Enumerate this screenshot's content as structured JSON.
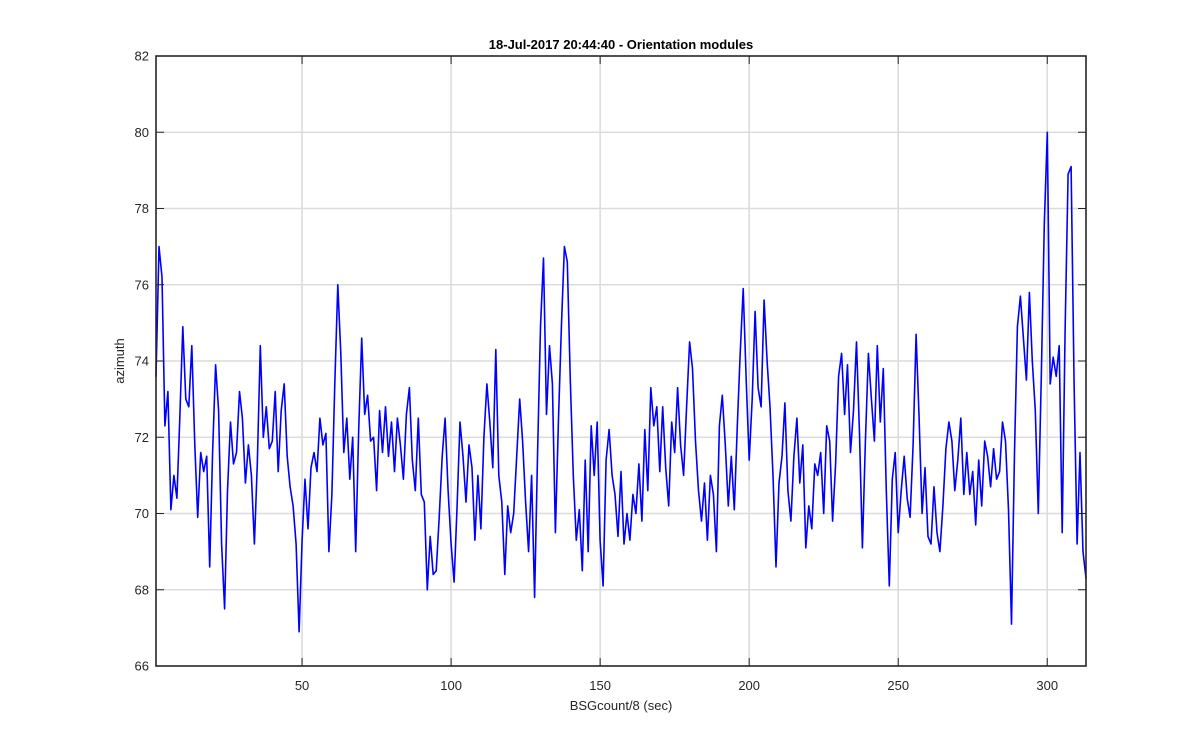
{
  "chart_data": {
    "type": "line",
    "title": "18-Jul-2017 20:44:40 - Orientation modules",
    "xlabel": "BSGcount/8 (sec)",
    "ylabel": "azimuth",
    "xlim": [
      1,
      313
    ],
    "ylim": [
      66,
      82
    ],
    "xticks": [
      50,
      100,
      150,
      200,
      250,
      300
    ],
    "yticks": [
      66,
      68,
      70,
      72,
      74,
      76,
      78,
      80,
      82
    ],
    "grid": true,
    "box": true,
    "series": [
      {
        "color": "#0000ff",
        "points": [
          [
            1,
            73.6
          ],
          [
            2,
            77.0
          ],
          [
            3,
            76.2
          ],
          [
            4,
            72.3
          ],
          [
            5,
            73.2
          ],
          [
            6,
            70.1
          ],
          [
            7,
            71.0
          ],
          [
            8,
            70.4
          ],
          [
            9,
            72.5
          ],
          [
            10,
            74.9
          ],
          [
            11,
            73.0
          ],
          [
            12,
            72.8
          ],
          [
            13,
            74.4
          ],
          [
            14,
            71.8
          ],
          [
            15,
            69.9
          ],
          [
            16,
            71.6
          ],
          [
            17,
            71.1
          ],
          [
            18,
            71.5
          ],
          [
            19,
            68.6
          ],
          [
            20,
            71.6
          ],
          [
            21,
            73.9
          ],
          [
            22,
            72.7
          ],
          [
            23,
            69.2
          ],
          [
            24,
            67.5
          ],
          [
            25,
            70.6
          ],
          [
            26,
            72.4
          ],
          [
            27,
            71.3
          ],
          [
            28,
            71.6
          ],
          [
            29,
            73.2
          ],
          [
            30,
            72.5
          ],
          [
            31,
            70.8
          ],
          [
            32,
            71.8
          ],
          [
            33,
            71.0
          ],
          [
            34,
            69.2
          ],
          [
            35,
            71.3
          ],
          [
            36,
            74.4
          ],
          [
            37,
            72.0
          ],
          [
            38,
            72.8
          ],
          [
            39,
            71.7
          ],
          [
            40,
            71.9
          ],
          [
            41,
            73.2
          ],
          [
            42,
            71.1
          ],
          [
            43,
            72.7
          ],
          [
            44,
            73.4
          ],
          [
            45,
            71.5
          ],
          [
            46,
            70.7
          ],
          [
            47,
            70.2
          ],
          [
            48,
            69.2
          ],
          [
            49,
            66.9
          ],
          [
            50,
            69.3
          ],
          [
            51,
            70.9
          ],
          [
            52,
            69.6
          ],
          [
            53,
            71.2
          ],
          [
            54,
            71.6
          ],
          [
            55,
            71.1
          ],
          [
            56,
            72.5
          ],
          [
            57,
            71.8
          ],
          [
            58,
            72.1
          ],
          [
            59,
            69.0
          ],
          [
            60,
            70.5
          ],
          [
            61,
            73.4
          ],
          [
            62,
            76.0
          ],
          [
            63,
            74.2
          ],
          [
            64,
            71.6
          ],
          [
            65,
            72.5
          ],
          [
            66,
            70.9
          ],
          [
            67,
            72.0
          ],
          [
            68,
            69.0
          ],
          [
            69,
            72.2
          ],
          [
            70,
            74.6
          ],
          [
            71,
            72.6
          ],
          [
            72,
            73.1
          ],
          [
            73,
            71.9
          ],
          [
            74,
            72.0
          ],
          [
            75,
            70.6
          ],
          [
            76,
            72.7
          ],
          [
            77,
            71.6
          ],
          [
            78,
            72.8
          ],
          [
            79,
            71.5
          ],
          [
            80,
            72.4
          ],
          [
            81,
            71.1
          ],
          [
            82,
            72.5
          ],
          [
            83,
            71.8
          ],
          [
            84,
            70.9
          ],
          [
            85,
            72.6
          ],
          [
            86,
            73.3
          ],
          [
            87,
            71.4
          ],
          [
            88,
            70.6
          ],
          [
            89,
            72.5
          ],
          [
            90,
            70.5
          ],
          [
            91,
            70.3
          ],
          [
            92,
            68.0
          ],
          [
            93,
            69.4
          ],
          [
            94,
            68.4
          ],
          [
            95,
            68.5
          ],
          [
            96,
            69.9
          ],
          [
            97,
            71.5
          ],
          [
            98,
            72.5
          ],
          [
            99,
            70.6
          ],
          [
            100,
            69.2
          ],
          [
            101,
            68.2
          ],
          [
            102,
            70.2
          ],
          [
            103,
            72.4
          ],
          [
            104,
            71.5
          ],
          [
            105,
            70.3
          ],
          [
            106,
            71.8
          ],
          [
            107,
            71.2
          ],
          [
            108,
            69.3
          ],
          [
            109,
            71.0
          ],
          [
            110,
            69.6
          ],
          [
            111,
            72.0
          ],
          [
            112,
            73.4
          ],
          [
            113,
            72.4
          ],
          [
            114,
            71.2
          ],
          [
            115,
            74.3
          ],
          [
            116,
            71.0
          ],
          [
            117,
            70.3
          ],
          [
            118,
            68.4
          ],
          [
            119,
            70.2
          ],
          [
            120,
            69.5
          ],
          [
            121,
            70.0
          ],
          [
            122,
            71.5
          ],
          [
            123,
            73.0
          ],
          [
            124,
            71.9
          ],
          [
            125,
            70.3
          ],
          [
            126,
            69.0
          ],
          [
            127,
            71.0
          ],
          [
            128,
            67.8
          ],
          [
            129,
            71.5
          ],
          [
            130,
            74.9
          ],
          [
            131,
            76.7
          ],
          [
            132,
            72.6
          ],
          [
            133,
            74.4
          ],
          [
            134,
            73.4
          ],
          [
            135,
            69.5
          ],
          [
            136,
            72.4
          ],
          [
            137,
            74.9
          ],
          [
            138,
            77.0
          ],
          [
            139,
            76.6
          ],
          [
            140,
            73.5
          ],
          [
            141,
            71.0
          ],
          [
            142,
            69.3
          ],
          [
            143,
            70.1
          ],
          [
            144,
            68.5
          ],
          [
            145,
            71.4
          ],
          [
            146,
            69.0
          ],
          [
            147,
            72.3
          ],
          [
            148,
            71.0
          ],
          [
            149,
            72.4
          ],
          [
            150,
            69.3
          ],
          [
            151,
            68.1
          ],
          [
            152,
            71.4
          ],
          [
            153,
            72.2
          ],
          [
            154,
            71.0
          ],
          [
            155,
            70.5
          ],
          [
            156,
            69.4
          ],
          [
            157,
            71.1
          ],
          [
            158,
            69.2
          ],
          [
            159,
            70.0
          ],
          [
            160,
            69.3
          ],
          [
            161,
            70.5
          ],
          [
            162,
            70.0
          ],
          [
            163,
            71.3
          ],
          [
            164,
            69.8
          ],
          [
            165,
            72.2
          ],
          [
            166,
            70.6
          ],
          [
            167,
            73.3
          ],
          [
            168,
            72.3
          ],
          [
            169,
            72.8
          ],
          [
            170,
            71.1
          ],
          [
            171,
            72.8
          ],
          [
            172,
            71.2
          ],
          [
            173,
            70.2
          ],
          [
            174,
            72.4
          ],
          [
            175,
            71.6
          ],
          [
            176,
            73.3
          ],
          [
            177,
            71.8
          ],
          [
            178,
            71.0
          ],
          [
            179,
            72.8
          ],
          [
            180,
            74.5
          ],
          [
            181,
            73.8
          ],
          [
            182,
            71.9
          ],
          [
            183,
            70.6
          ],
          [
            184,
            69.8
          ],
          [
            185,
            70.8
          ],
          [
            186,
            69.3
          ],
          [
            187,
            71.0
          ],
          [
            188,
            70.5
          ],
          [
            189,
            69.0
          ],
          [
            190,
            72.3
          ],
          [
            191,
            73.1
          ],
          [
            192,
            71.8
          ],
          [
            193,
            70.2
          ],
          [
            194,
            71.5
          ],
          [
            195,
            70.1
          ],
          [
            196,
            72.3
          ],
          [
            197,
            74.2
          ],
          [
            198,
            75.9
          ],
          [
            199,
            73.5
          ],
          [
            200,
            71.4
          ],
          [
            201,
            73.0
          ],
          [
            202,
            75.3
          ],
          [
            203,
            73.3
          ],
          [
            204,
            72.8
          ],
          [
            205,
            75.6
          ],
          [
            206,
            74.0
          ],
          [
            207,
            72.8
          ],
          [
            208,
            71.0
          ],
          [
            209,
            68.6
          ],
          [
            210,
            70.8
          ],
          [
            211,
            71.5
          ],
          [
            212,
            72.9
          ],
          [
            213,
            70.6
          ],
          [
            214,
            69.8
          ],
          [
            215,
            71.5
          ],
          [
            216,
            72.5
          ],
          [
            217,
            70.8
          ],
          [
            218,
            71.8
          ],
          [
            219,
            69.1
          ],
          [
            220,
            70.2
          ],
          [
            221,
            69.6
          ],
          [
            222,
            71.3
          ],
          [
            223,
            71.0
          ],
          [
            224,
            71.6
          ],
          [
            225,
            70.0
          ],
          [
            226,
            72.3
          ],
          [
            227,
            71.9
          ],
          [
            228,
            69.8
          ],
          [
            229,
            71.3
          ],
          [
            230,
            73.6
          ],
          [
            231,
            74.2
          ],
          [
            232,
            72.6
          ],
          [
            233,
            73.9
          ],
          [
            234,
            71.6
          ],
          [
            235,
            72.7
          ],
          [
            236,
            74.5
          ],
          [
            237,
            72.1
          ],
          [
            238,
            69.1
          ],
          [
            239,
            71.9
          ],
          [
            240,
            74.2
          ],
          [
            241,
            73.0
          ],
          [
            242,
            71.9
          ],
          [
            243,
            74.4
          ],
          [
            244,
            72.4
          ],
          [
            245,
            73.8
          ],
          [
            246,
            70.6
          ],
          [
            247,
            68.1
          ],
          [
            248,
            70.9
          ],
          [
            249,
            71.6
          ],
          [
            250,
            69.5
          ],
          [
            251,
            70.6
          ],
          [
            252,
            71.5
          ],
          [
            253,
            70.4
          ],
          [
            254,
            69.9
          ],
          [
            255,
            71.8
          ],
          [
            256,
            74.7
          ],
          [
            257,
            72.5
          ],
          [
            258,
            70.0
          ],
          [
            259,
            71.2
          ],
          [
            260,
            69.4
          ],
          [
            261,
            69.2
          ],
          [
            262,
            70.7
          ],
          [
            263,
            69.5
          ],
          [
            264,
            69.0
          ],
          [
            265,
            70.2
          ],
          [
            266,
            71.7
          ],
          [
            267,
            72.4
          ],
          [
            268,
            71.9
          ],
          [
            269,
            70.6
          ],
          [
            270,
            71.4
          ],
          [
            271,
            72.5
          ],
          [
            272,
            70.5
          ],
          [
            273,
            71.6
          ],
          [
            274,
            70.5
          ],
          [
            275,
            71.1
          ],
          [
            276,
            69.7
          ],
          [
            277,
            71.4
          ],
          [
            278,
            70.2
          ],
          [
            279,
            71.9
          ],
          [
            280,
            71.5
          ],
          [
            281,
            70.7
          ],
          [
            282,
            71.7
          ],
          [
            283,
            70.9
          ],
          [
            284,
            71.1
          ],
          [
            285,
            72.4
          ],
          [
            286,
            71.9
          ],
          [
            287,
            70.1
          ],
          [
            288,
            67.1
          ],
          [
            289,
            71.6
          ],
          [
            290,
            74.9
          ],
          [
            291,
            75.7
          ],
          [
            292,
            74.6
          ],
          [
            293,
            73.5
          ],
          [
            294,
            75.8
          ],
          [
            295,
            74.0
          ],
          [
            296,
            72.7
          ],
          [
            297,
            70.0
          ],
          [
            298,
            73.6
          ],
          [
            299,
            77.6
          ],
          [
            300,
            80.0
          ],
          [
            301,
            73.4
          ],
          [
            302,
            74.1
          ],
          [
            303,
            73.6
          ],
          [
            304,
            74.4
          ],
          [
            305,
            69.5
          ],
          [
            306,
            74.8
          ],
          [
            307,
            78.9
          ],
          [
            308,
            79.1
          ],
          [
            309,
            73.4
          ],
          [
            310,
            69.2
          ],
          [
            311,
            71.6
          ],
          [
            312,
            69.0
          ],
          [
            313,
            68.3
          ]
        ]
      }
    ]
  }
}
